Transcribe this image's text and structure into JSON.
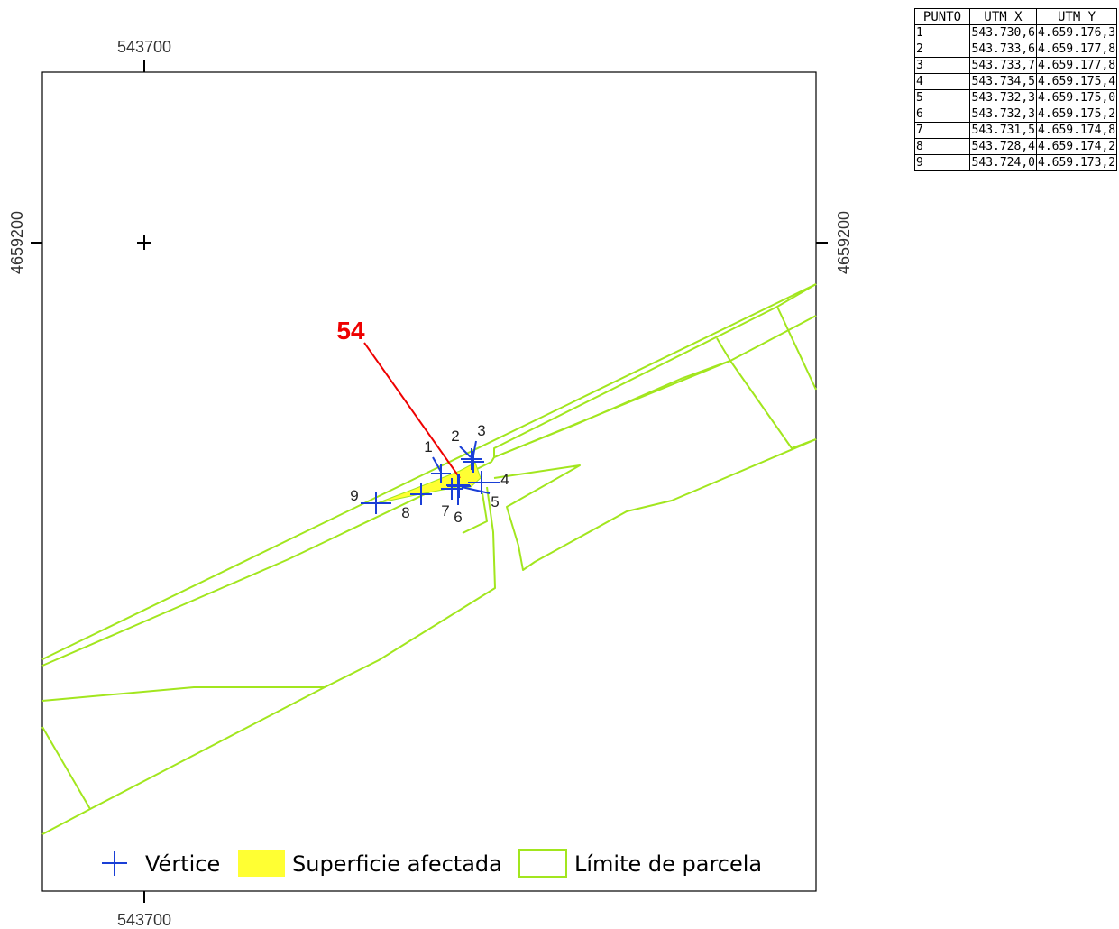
{
  "map": {
    "parcel_id": "54",
    "x_tick_label": "543700",
    "y_tick_label": "4659200",
    "colors": {
      "parcel_boundary": "#a2e61e",
      "affected_surface": "#ffff33",
      "vertex_marker": "#1a3fd6",
      "parcel_label": "#ee0000",
      "frame": "#000000"
    }
  },
  "vertices": [
    "1",
    "2",
    "3",
    "4",
    "5",
    "6",
    "7",
    "8",
    "9"
  ],
  "legend": {
    "vertex": "Vértice",
    "affected": "Superficie afectada",
    "boundary": "Límite de parcela"
  },
  "table": {
    "headers": [
      "PUNTO",
      "UTM X",
      "UTM Y"
    ],
    "rows": [
      [
        "1",
        "543.730,6",
        "4.659.176,3"
      ],
      [
        "2",
        "543.733,6",
        "4.659.177,8"
      ],
      [
        "3",
        "543.733,7",
        "4.659.177,8"
      ],
      [
        "4",
        "543.734,5",
        "4.659.175,4"
      ],
      [
        "5",
        "543.732,3",
        "4.659.175,0"
      ],
      [
        "6",
        "543.732,3",
        "4.659.175,2"
      ],
      [
        "7",
        "543.731,5",
        "4.659.174,8"
      ],
      [
        "8",
        "543.728,4",
        "4.659.174,2"
      ],
      [
        "9",
        "543.724,0",
        "4.659.173,2"
      ]
    ]
  }
}
